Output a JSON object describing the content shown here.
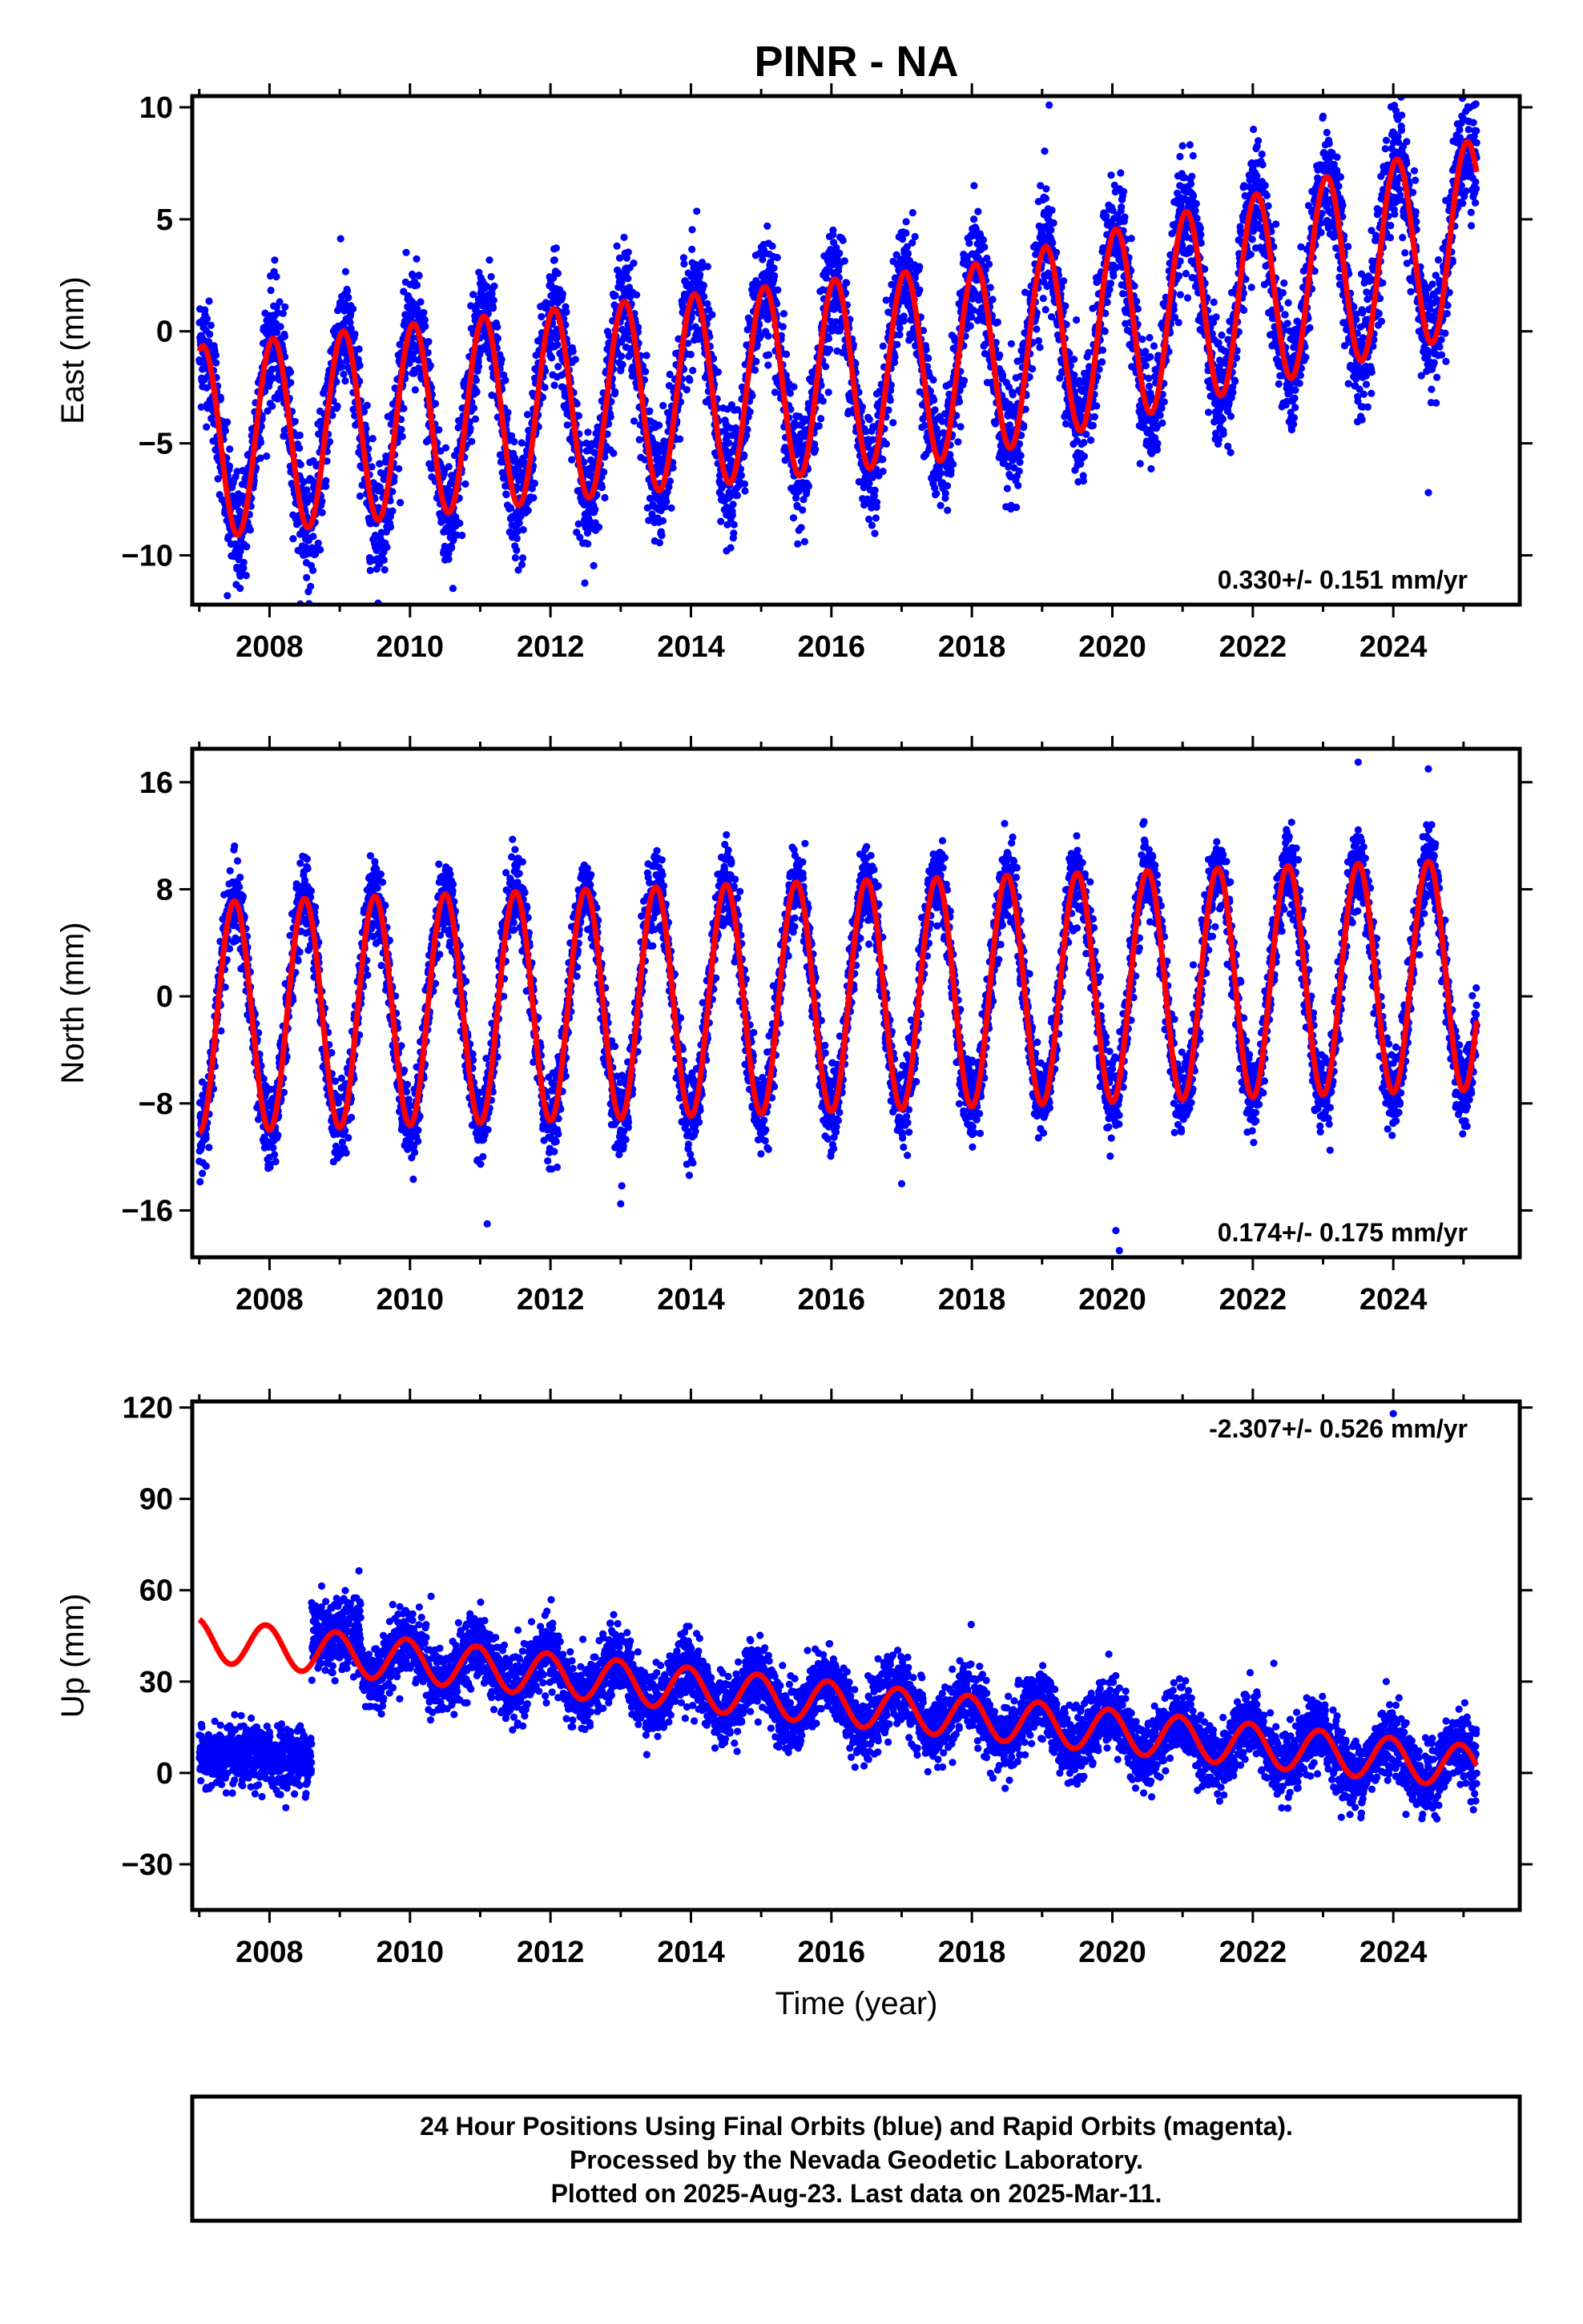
{
  "colors": {
    "final_orbits": "#0000ff",
    "model_fit": "#ff0000",
    "axis": "#000000",
    "background": "#ffffff"
  },
  "chart_data": [
    {
      "type": "scatter",
      "title": "PINR - NA",
      "ylabel": "East (mm)",
      "xlabel": "",
      "xlim": [
        2006.9,
        2025.8
      ],
      "ylim": [
        -12.2,
        10.5
      ],
      "x_ticks": [
        "2008",
        "2010",
        "2012",
        "2014",
        "2016",
        "2018",
        "2020",
        "2022",
        "2024"
      ],
      "y_ticks": [
        "10",
        "5",
        "0",
        "−5",
        "−10"
      ],
      "y_tick_values": [
        10,
        5,
        0,
        -5,
        -10
      ],
      "rate_label": "0.330+/- 0.151 mm/yr",
      "rate_position": "bottom-right",
      "data_span": [
        2007.0,
        2025.19
      ],
      "model": {
        "offset": -2.0,
        "rate": 0.33,
        "rate_increase_after_2018": 0.45,
        "annual_amplitude": 4.3,
        "peak_phase_year_fraction": 0.05
      },
      "series": [
        {
          "name": "",
          "kind": "points",
          "description_color": "#0000ff",
          "noise_sd": 1.3
        },
        {
          "name": "",
          "kind": "fit_line",
          "description_color": "#ff0000"
        }
      ],
      "outliers": [
        [
          2010.5,
          -10.2
        ],
        [
          2007.4,
          -11.8
        ],
        [
          2019.1,
          10.1
        ],
        [
          2024.5,
          -7.2
        ],
        [
          2012.4,
          -8.6
        ]
      ]
    },
    {
      "type": "scatter",
      "title": "",
      "ylabel": "North (mm)",
      "xlabel": "",
      "xlim": [
        2006.9,
        2025.8
      ],
      "ylim": [
        -19.5,
        18.5
      ],
      "x_ticks": [
        "2008",
        "2010",
        "2012",
        "2014",
        "2016",
        "2018",
        "2020",
        "2022",
        "2024"
      ],
      "y_ticks": [
        "16",
        "8",
        "0",
        "−8",
        "−16"
      ],
      "y_tick_values": [
        16,
        8,
        0,
        -8,
        -16
      ],
      "rate_label": "0.174+/- 0.175 mm/yr",
      "rate_position": "bottom-right",
      "data_span": [
        2007.0,
        2025.19
      ],
      "model": {
        "offset": 0.0,
        "rate": 0.174,
        "annual_amplitude": 8.6,
        "peak_phase_year_fraction": 0.5
      },
      "series": [
        {
          "name": "",
          "kind": "points",
          "description_color": "#0000ff",
          "noise_sd": 1.5
        },
        {
          "name": "",
          "kind": "fit_line",
          "description_color": "#ff0000"
        }
      ],
      "outliers": [
        [
          2011.1,
          -17.0
        ],
        [
          2020.1,
          -19.0
        ],
        [
          2020.05,
          -17.5
        ],
        [
          2013.0,
          -15.5
        ],
        [
          2023.1,
          -11.5
        ],
        [
          2017.0,
          -14.0
        ],
        [
          2023.5,
          17.5
        ],
        [
          2024.5,
          17.0
        ]
      ]
    },
    {
      "type": "scatter",
      "title": "",
      "ylabel": "Up (mm)",
      "xlabel": "Time (year)",
      "xlim": [
        2006.9,
        2025.8
      ],
      "ylim": [
        -45,
        122
      ],
      "x_ticks": [
        "2008",
        "2010",
        "2012",
        "2014",
        "2016",
        "2018",
        "2020",
        "2022",
        "2024"
      ],
      "y_ticks": [
        "120",
        "90",
        "60",
        "30",
        "0",
        "−30"
      ],
      "y_tick_values": [
        120,
        90,
        60,
        30,
        0,
        -30
      ],
      "rate_label": "-2.307+/- 0.526 mm/yr",
      "rate_position": "top-right",
      "data_span": [
        2007.0,
        2025.19
      ],
      "model": {
        "offset": 23.0,
        "rate": -2.307,
        "annual_amplitude": 7.0,
        "peak_phase_year_fraction": 0.95,
        "offset_change_at": 2009.0
      },
      "series": [
        {
          "name": "",
          "kind": "points",
          "description_color": "#0000ff",
          "noise_sd": 5.5
        },
        {
          "name": "",
          "kind": "fit_line",
          "description_color": "#ff0000"
        }
      ],
      "offset_cluster": {
        "x_range": [
          2008.6,
          2009.3
        ],
        "y_center": 45,
        "spread": 6
      },
      "outliers": [
        [
          2010.3,
          58
        ],
        [
          2011.0,
          45
        ],
        [
          2012.9,
          52
        ],
        [
          2019.95,
          39
        ],
        [
          2022.3,
          36
        ],
        [
          2023.9,
          30
        ],
        [
          2024.0,
          118
        ],
        [
          2015.9,
          35
        ]
      ]
    }
  ],
  "footer": {
    "line1": "24 Hour Positions Using Final Orbits (blue) and Rapid Orbits (magenta).",
    "line2": "Processed by the Nevada Geodetic Laboratory.",
    "line3": "Plotted on 2025-Aug-23. Last data on 2025-Mar-11."
  }
}
